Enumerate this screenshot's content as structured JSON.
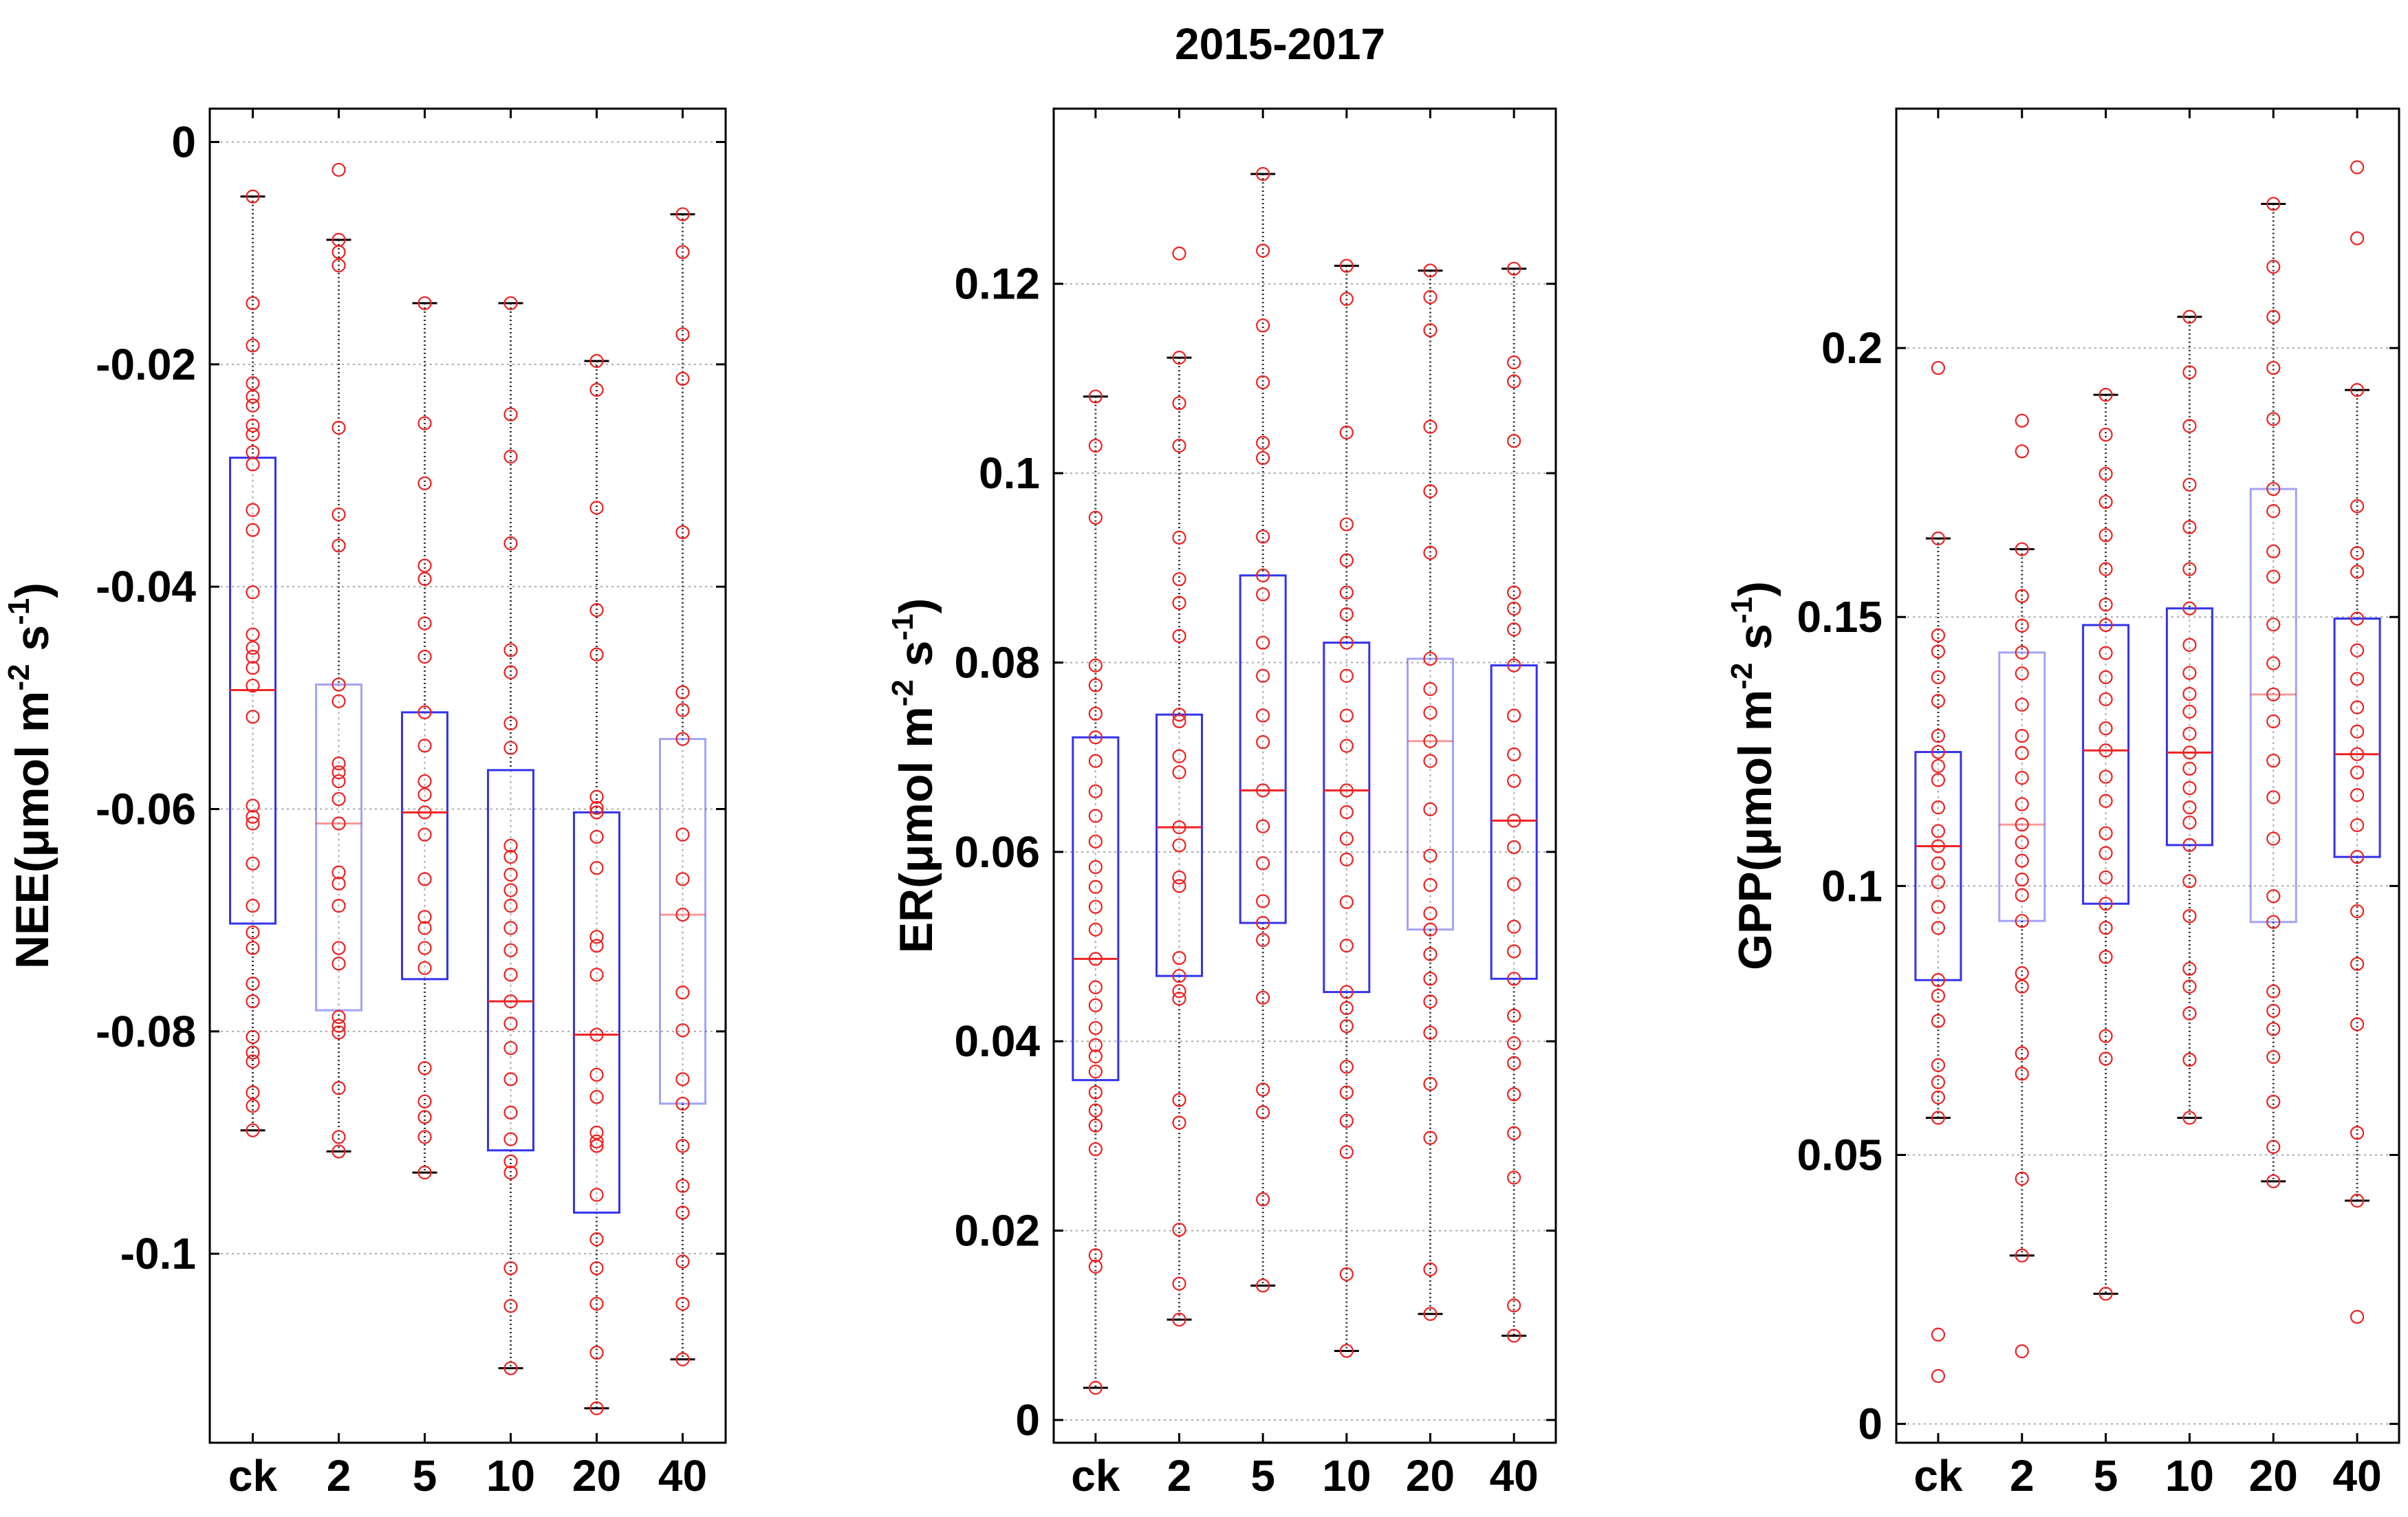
{
  "figure": {
    "title": "2015-2017"
  },
  "colors": {
    "box": "#3333ee",
    "median": "#ee2222",
    "points": "#ee2222",
    "whisker": "#000000",
    "grid": "#aaaaaa",
    "axis": "#000000"
  },
  "chart_data": [
    {
      "type": "box",
      "name": "nee",
      "ylabel_main": "NEE(μmol m",
      "ylabel_sup1": "-2",
      "ylabel_mid": " s",
      "ylabel_sup2": "-1",
      "ylabel_end": ")",
      "categories": [
        "ck",
        "2",
        "5",
        "10",
        "20",
        "40"
      ],
      "ylim": [
        -0.117,
        0.003
      ],
      "yticks": [
        0,
        -0.02,
        -0.04,
        -0.06,
        -0.08,
        -0.1
      ],
      "ytick_labels": [
        "0",
        "-0.02",
        "-0.04",
        "-0.06",
        "-0.08",
        "-0.1"
      ],
      "grid": true,
      "boxes": [
        {
          "q1": -0.0703,
          "median": -0.0493,
          "q3": -0.0284,
          "whisker_low": -0.0889,
          "whisker_high": -0.0049,
          "faint": false,
          "points": [
            -0.0049,
            -0.0145,
            -0.0183,
            -0.0217,
            -0.0229,
            -0.0237,
            -0.0255,
            -0.0263,
            -0.0279,
            -0.029,
            -0.0331,
            -0.0349,
            -0.0405,
            -0.0443,
            -0.0455,
            -0.0463,
            -0.0473,
            -0.0489,
            -0.0517,
            -0.0597,
            -0.0607,
            -0.0613,
            -0.0649,
            -0.0687,
            -0.0711,
            -0.0725,
            -0.0757,
            -0.0773,
            -0.0805,
            -0.0819,
            -0.0827,
            -0.0855,
            -0.0867,
            -0.0889
          ]
        },
        {
          "q1": -0.0781,
          "median": -0.0613,
          "q3": -0.0488,
          "whisker_low": -0.0908,
          "whisker_high": -0.0088,
          "faint": true,
          "points": [
            -0.0025,
            -0.0088,
            -0.0099,
            -0.0111,
            -0.0257,
            -0.0335,
            -0.0363,
            -0.0488,
            -0.0503,
            -0.0559,
            -0.0567,
            -0.0575,
            -0.0591,
            -0.0613,
            -0.0657,
            -0.0667,
            -0.0687,
            -0.0725,
            -0.0739,
            -0.0787,
            -0.0795,
            -0.0801,
            -0.0851,
            -0.0895,
            -0.0908
          ]
        },
        {
          "q1": -0.0753,
          "median": -0.0603,
          "q3": -0.0513,
          "whisker_low": -0.0927,
          "whisker_high": -0.0145,
          "faint": false,
          "points": [
            -0.0145,
            -0.0253,
            -0.0307,
            -0.0381,
            -0.0393,
            -0.0433,
            -0.0463,
            -0.0513,
            -0.0543,
            -0.0575,
            -0.0587,
            -0.0603,
            -0.0623,
            -0.0663,
            -0.0697,
            -0.0707,
            -0.0725,
            -0.0743,
            -0.0833,
            -0.0863,
            -0.0877,
            -0.0895,
            -0.0927
          ]
        },
        {
          "q1": -0.0907,
          "median": -0.0773,
          "q3": -0.0565,
          "whisker_low": -0.1103,
          "whisker_high": -0.0145,
          "faint": false,
          "points": [
            -0.0145,
            -0.0245,
            -0.0283,
            -0.0361,
            -0.0457,
            -0.0477,
            -0.0523,
            -0.0545,
            -0.0633,
            -0.0643,
            -0.0659,
            -0.0673,
            -0.0687,
            -0.0707,
            -0.0727,
            -0.0749,
            -0.0773,
            -0.0793,
            -0.0815,
            -0.0843,
            -0.0873,
            -0.0897,
            -0.0917,
            -0.0927,
            -0.1013,
            -0.1047,
            -0.1103
          ]
        },
        {
          "q1": -0.0963,
          "median": -0.0803,
          "q3": -0.0603,
          "whisker_low": -0.1139,
          "whisker_high": -0.0197,
          "faint": false,
          "points": [
            -0.0197,
            -0.0223,
            -0.0329,
            -0.0421,
            -0.0461,
            -0.0589,
            -0.0599,
            -0.0603,
            -0.0625,
            -0.0653,
            -0.0715,
            -0.0723,
            -0.0749,
            -0.0803,
            -0.0839,
            -0.0859,
            -0.0891,
            -0.0899,
            -0.0903,
            -0.0947,
            -0.0987,
            -0.1013,
            -0.1045,
            -0.1089,
            -0.1139
          ]
        },
        {
          "q1": -0.0865,
          "median": -0.0695,
          "q3": -0.0537,
          "whisker_low": -0.1095,
          "whisker_high": -0.0065,
          "faint": true,
          "points": [
            -0.0065,
            -0.0099,
            -0.0173,
            -0.0213,
            -0.0351,
            -0.0495,
            -0.0511,
            -0.0537,
            -0.0623,
            -0.0663,
            -0.0695,
            -0.0765,
            -0.0799,
            -0.0843,
            -0.0865,
            -0.0903,
            -0.0939,
            -0.0963,
            -0.1007,
            -0.1045,
            -0.1095
          ]
        }
      ]
    },
    {
      "type": "box",
      "name": "er",
      "ylabel_main": "ER(μmol m",
      "ylabel_sup1": "-2",
      "ylabel_mid": " s",
      "ylabel_sup2": "-1",
      "ylabel_end": ")",
      "categories": [
        "ck",
        "2",
        "5",
        "10",
        "20",
        "40"
      ],
      "ylim": [
        -0.0024,
        0.1385
      ],
      "yticks": [
        0,
        0.02,
        0.04,
        0.06,
        0.08,
        0.1,
        0.12
      ],
      "ytick_labels": [
        "0",
        "0.02",
        "0.04",
        "0.06",
        "0.08",
        "0.1",
        "0.12"
      ],
      "grid": true,
      "boxes": [
        {
          "q1": 0.0359,
          "median": 0.0487,
          "q3": 0.0721,
          "whisker_low": 0.0034,
          "whisker_high": 0.1081,
          "faint": false,
          "points": [
            0.0034,
            0.0162,
            0.0174,
            0.0286,
            0.0311,
            0.0327,
            0.0346,
            0.0368,
            0.0384,
            0.0396,
            0.0414,
            0.0438,
            0.0457,
            0.0487,
            0.0518,
            0.0542,
            0.0563,
            0.0584,
            0.0611,
            0.0638,
            0.0664,
            0.0696,
            0.0721,
            0.0746,
            0.0776,
            0.0797,
            0.0953,
            0.1029,
            0.1081
          ]
        },
        {
          "q1": 0.0469,
          "median": 0.0626,
          "q3": 0.0745,
          "whisker_low": 0.0106,
          "whisker_high": 0.1122,
          "faint": false,
          "points": [
            0.0106,
            0.0144,
            0.0201,
            0.0314,
            0.0338,
            0.0445,
            0.0453,
            0.0469,
            0.0488,
            0.0564,
            0.0573,
            0.0607,
            0.0626,
            0.0684,
            0.0701,
            0.0738,
            0.0745,
            0.0828,
            0.0863,
            0.0888,
            0.0932,
            0.1029,
            0.1074,
            0.1122,
            0.1232
          ]
        },
        {
          "q1": 0.0525,
          "median": 0.0665,
          "q3": 0.0892,
          "whisker_low": 0.0142,
          "whisker_high": 0.1316,
          "faint": false,
          "points": [
            0.0142,
            0.0233,
            0.0325,
            0.0349,
            0.0446,
            0.0507,
            0.0525,
            0.0548,
            0.0588,
            0.0627,
            0.0665,
            0.0716,
            0.0744,
            0.0786,
            0.0821,
            0.0872,
            0.0892,
            0.0933,
            0.1016,
            0.1032,
            0.1096,
            0.1156,
            0.1235,
            0.1316
          ]
        },
        {
          "q1": 0.0452,
          "median": 0.0665,
          "q3": 0.0821,
          "whisker_low": 0.0073,
          "whisker_high": 0.1219,
          "faint": false,
          "points": [
            0.0073,
            0.0154,
            0.0283,
            0.0316,
            0.0346,
            0.0373,
            0.0416,
            0.0435,
            0.0452,
            0.0501,
            0.0547,
            0.0592,
            0.0614,
            0.0642,
            0.0665,
            0.0712,
            0.0744,
            0.0786,
            0.0821,
            0.0851,
            0.0874,
            0.0908,
            0.0946,
            0.1043,
            0.1184,
            0.1219
          ]
        },
        {
          "q1": 0.0518,
          "median": 0.0717,
          "q3": 0.0804,
          "whisker_low": 0.0112,
          "whisker_high": 0.1214,
          "faint": true,
          "points": [
            0.0112,
            0.0159,
            0.0298,
            0.0355,
            0.0409,
            0.0442,
            0.0466,
            0.0492,
            0.0518,
            0.0535,
            0.0565,
            0.0596,
            0.0645,
            0.0696,
            0.0717,
            0.0747,
            0.0772,
            0.0804,
            0.0916,
            0.0981,
            0.1049,
            0.1151,
            0.1186,
            0.1214
          ]
        },
        {
          "q1": 0.0466,
          "median": 0.0633,
          "q3": 0.0797,
          "whisker_low": 0.0089,
          "whisker_high": 0.1216,
          "faint": false,
          "points": [
            0.0089,
            0.0121,
            0.0256,
            0.0303,
            0.0344,
            0.0377,
            0.0398,
            0.0427,
            0.0466,
            0.0495,
            0.0521,
            0.0566,
            0.0605,
            0.0633,
            0.0675,
            0.0703,
            0.0744,
            0.0797,
            0.0835,
            0.0857,
            0.0874,
            0.1034,
            0.1097,
            0.1117,
            0.1216
          ]
        }
      ]
    },
    {
      "type": "box",
      "name": "gpp",
      "ylabel_main": "GPP(μmol m",
      "ylabel_sup1": "-2",
      "ylabel_mid": " s",
      "ylabel_sup2": "-1",
      "ylabel_end": ")",
      "categories": [
        "ck",
        "2",
        "5",
        "10",
        "20",
        "40"
      ],
      "ylim": [
        -0.0035,
        0.2445
      ],
      "yticks": [
        0,
        0.05,
        0.1,
        0.15,
        0.2
      ],
      "ytick_labels": [
        "0",
        "0.05",
        "0.1",
        "0.15",
        "0.2"
      ],
      "grid": true,
      "boxes": [
        {
          "q1": 0.0825,
          "median": 0.1074,
          "q3": 0.1249,
          "whisker_low": 0.0569,
          "whisker_high": 0.1646,
          "faint": false,
          "points": [
            0.0089,
            0.0166,
            0.0569,
            0.0607,
            0.0635,
            0.0667,
            0.0749,
            0.0796,
            0.0825,
            0.0922,
            0.0961,
            0.1007,
            0.1042,
            0.1074,
            0.1102,
            0.1146,
            0.1197,
            0.1223,
            0.1249,
            0.1279,
            0.1344,
            0.1388,
            0.1436,
            0.1466,
            0.1646,
            0.1963
          ]
        },
        {
          "q1": 0.0935,
          "median": 0.1114,
          "q3": 0.1434,
          "whisker_low": 0.0313,
          "whisker_high": 0.1626,
          "faint": true,
          "points": [
            0.0135,
            0.0313,
            0.0456,
            0.0651,
            0.0689,
            0.0813,
            0.0838,
            0.0935,
            0.0983,
            0.1012,
            0.1047,
            0.1081,
            0.1114,
            0.1152,
            0.1201,
            0.1247,
            0.1279,
            0.1337,
            0.1395,
            0.1434,
            0.1484,
            0.1539,
            0.1626,
            0.1808,
            0.1865
          ]
        },
        {
          "q1": 0.0967,
          "median": 0.1252,
          "q3": 0.1485,
          "whisker_low": 0.0242,
          "whisker_high": 0.1913,
          "faint": false,
          "points": [
            0.0242,
            0.0679,
            0.0721,
            0.0868,
            0.0922,
            0.0967,
            0.1016,
            0.1061,
            0.1098,
            0.1158,
            0.1203,
            0.1252,
            0.1293,
            0.1347,
            0.1388,
            0.1433,
            0.1485,
            0.1523,
            0.1589,
            0.1652,
            0.1714,
            0.1766,
            0.1839,
            0.1913
          ]
        },
        {
          "q1": 0.1076,
          "median": 0.1248,
          "q3": 0.1516,
          "whisker_low": 0.0569,
          "whisker_high": 0.2058,
          "faint": false,
          "points": [
            0.0569,
            0.0677,
            0.0763,
            0.0813,
            0.0846,
            0.0944,
            0.1009,
            0.1076,
            0.1118,
            0.1146,
            0.1182,
            0.1218,
            0.1248,
            0.1283,
            0.1324,
            0.1357,
            0.1396,
            0.1448,
            0.1516,
            0.1589,
            0.1667,
            0.1746,
            0.1855,
            0.1955,
            0.2058
          ]
        },
        {
          "q1": 0.0933,
          "median": 0.1356,
          "q3": 0.1738,
          "whisker_low": 0.0451,
          "whisker_high": 0.2268,
          "faint": true,
          "points": [
            0.0451,
            0.0515,
            0.0599,
            0.0682,
            0.0734,
            0.0768,
            0.0804,
            0.0933,
            0.0981,
            0.1088,
            0.1165,
            0.1233,
            0.1306,
            0.1356,
            0.1414,
            0.1486,
            0.1575,
            0.1622,
            0.1697,
            0.1738,
            0.1868,
            0.1963,
            0.2058,
            0.2151,
            0.2268
          ]
        },
        {
          "q1": 0.1054,
          "median": 0.1245,
          "q3": 0.1497,
          "whisker_low": 0.0415,
          "whisker_high": 0.1922,
          "faint": false,
          "points": [
            0.0199,
            0.0415,
            0.0541,
            0.0743,
            0.0855,
            0.0953,
            0.1054,
            0.1113,
            0.1169,
            0.1211,
            0.1245,
            0.1287,
            0.1332,
            0.1385,
            0.1438,
            0.1497,
            0.1584,
            0.1619,
            0.1706,
            0.1922,
            0.2204,
            0.2336
          ]
        }
      ]
    }
  ]
}
